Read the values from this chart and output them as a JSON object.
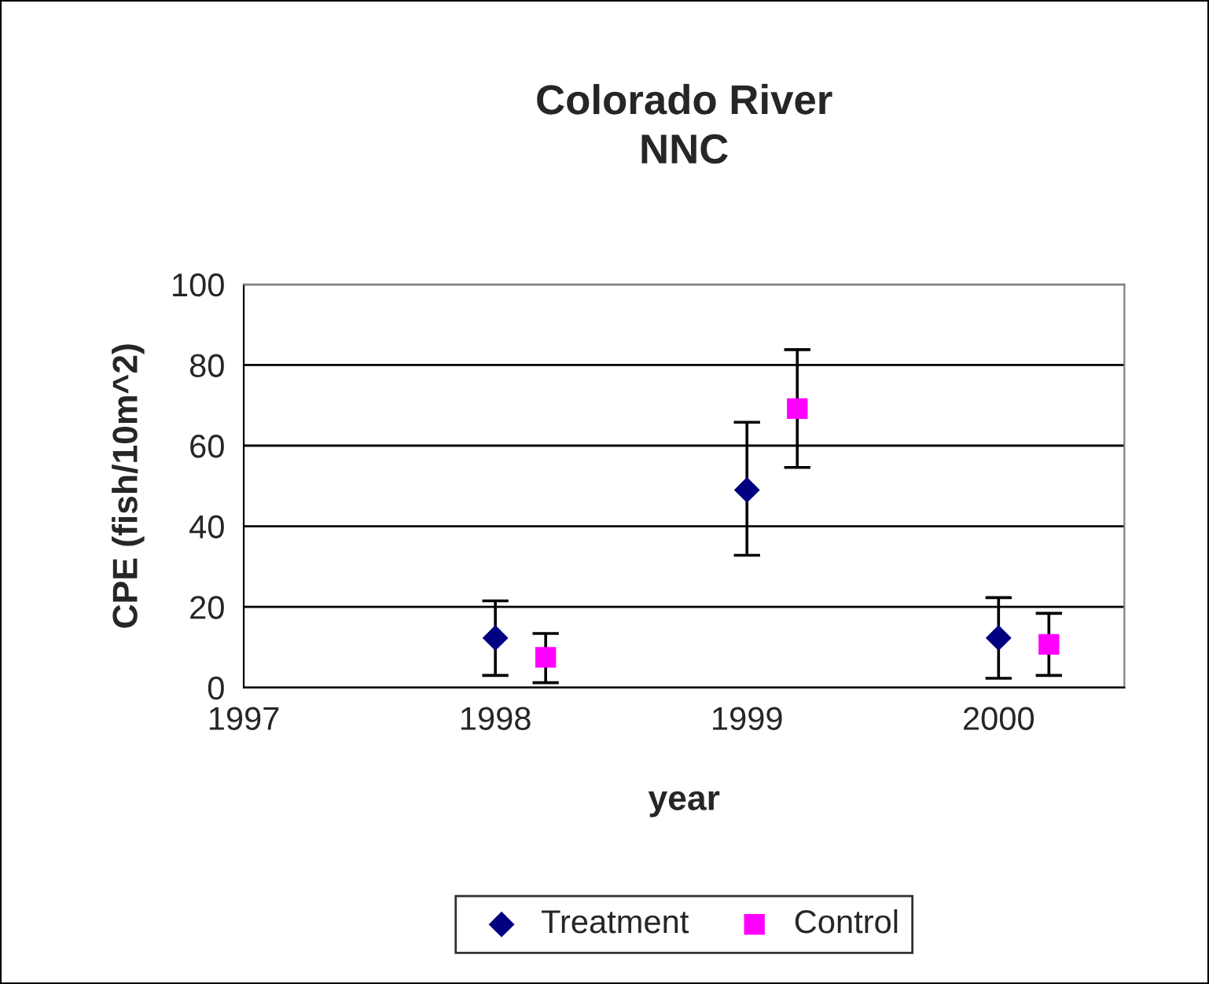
{
  "chart_data": {
    "type": "scatter",
    "title": "Colorado River\nNNC",
    "xlabel": "year",
    "ylabel": "CPE (fish/10m^2)",
    "xlim": [
      1997,
      2000.5
    ],
    "xticks": [
      1997,
      1998,
      1999,
      2000
    ],
    "ylim": [
      0,
      100
    ],
    "yticks": [
      0,
      20,
      40,
      60,
      80,
      100
    ],
    "grid": "y",
    "legend": "bottom",
    "series": [
      {
        "name": "Treatment",
        "color": "#000080",
        "marker": "diamond",
        "x": [
          1998,
          1999,
          2000
        ],
        "values": [
          12.3,
          49.0,
          12.3
        ],
        "errors": [
          [
            3.0,
            21.5
          ],
          [
            32.8,
            65.8
          ],
          [
            2.3,
            22.3
          ]
        ]
      },
      {
        "name": "Control",
        "color": "#ff00ff",
        "marker": "square",
        "x": [
          1998.2,
          1999.2,
          2000.2
        ],
        "values": [
          7.5,
          69.2,
          10.7
        ],
        "errors": [
          [
            1.2,
            13.4
          ],
          [
            54.6,
            83.8
          ],
          [
            3.0,
            18.4
          ]
        ]
      }
    ]
  }
}
